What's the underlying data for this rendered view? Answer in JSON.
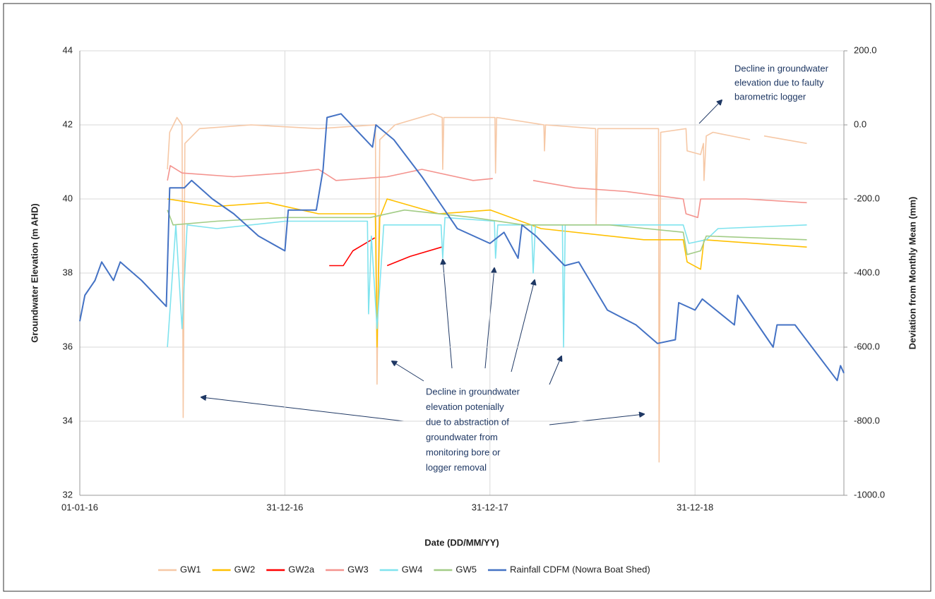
{
  "chart_data": {
    "type": "line",
    "xlabel": "Date (DD/MM/YY)",
    "ylabel": "Groundwater Elevation (m AHD)",
    "y2label": "Deviation from Monthly Mean (mm)",
    "xlim": [
      "2016-01-01",
      "2019-09-22"
    ],
    "xticks": [
      {
        "value": "2016-01-01",
        "label": "01-01-16"
      },
      {
        "value": "2016-12-31",
        "label": "31-12-16"
      },
      {
        "value": "2017-12-31",
        "label": "31-12-17"
      },
      {
        "value": "2018-12-31",
        "label": "31-12-18"
      }
    ],
    "ylim": [
      32,
      44
    ],
    "yticks": [
      32,
      34,
      36,
      38,
      40,
      42,
      44
    ],
    "y2lim": [
      -1000,
      200
    ],
    "y2ticks": [
      {
        "value": -1000,
        "label": "-1000.0"
      },
      {
        "value": -800,
        "label": "-800.0"
      },
      {
        "value": -600,
        "label": "-600.0"
      },
      {
        "value": -400,
        "label": "-400.0"
      },
      {
        "value": -200,
        "label": "-200.0"
      },
      {
        "value": 0,
        "label": "0.0"
      },
      {
        "value": 200,
        "label": "200.0"
      }
    ],
    "grid": true,
    "legend": "bottom",
    "annotations": [
      {
        "lines": [
          "Decline in groundwater",
          "elevation due to faulty",
          "barometric logger"
        ]
      },
      {
        "lines": [
          "Decline in groundwater",
          "elevation potenially",
          "due to abstraction of",
          "groundwater from",
          "monitoring bore or",
          "logger removal"
        ]
      }
    ],
    "series": [
      {
        "name": "GW1",
        "color": "#f6c8a6",
        "x": [
          "2016-06-05",
          "2016-06-09",
          "2016-06-22",
          "2016-07-01",
          "2016-07-03",
          "2016-07-06",
          "2016-08-01",
          "2016-11-01",
          "2017-03-01",
          "2017-06-10",
          "2017-06-13",
          "2017-06-18",
          "2017-07-15",
          "2017-09-20",
          "2017-10-07",
          "2017-10-08",
          "2017-10-10",
          "2018-01-09",
          "2018-01-10",
          "2018-01-12",
          "2018-04-06",
          "2018-04-07",
          "2018-04-09",
          "2018-07-07",
          "2018-07-08",
          "2018-07-11",
          "2018-10-27",
          "2018-10-28",
          "2018-10-31",
          "2018-12-15",
          "2018-12-17",
          "2019-01-10",
          "2019-01-15",
          "2019-01-16",
          "2019-01-20",
          "2019-02-01",
          "2019-04-08",
          "2019-04-20",
          "2019-05-03",
          "2019-07-18"
        ],
        "values": [
          40.8,
          41.8,
          42.2,
          42.0,
          34.1,
          41.5,
          41.9,
          42.0,
          41.9,
          42.0,
          35.0,
          41.6,
          42.0,
          42.3,
          42.2,
          40.8,
          42.2,
          42.2,
          40.7,
          42.2,
          42.0,
          41.3,
          42.0,
          41.9,
          39.3,
          41.9,
          41.9,
          32.9,
          41.8,
          41.9,
          41.3,
          41.2,
          41.5,
          40.5,
          41.7,
          41.8,
          41.6,
          null,
          41.7,
          41.5
        ]
      },
      {
        "name": "GW2",
        "color": "#ffc000",
        "x": [
          "2016-06-05",
          "2016-09-01",
          "2016-12-01",
          "2017-03-01",
          "2017-06-10",
          "2017-06-13",
          "2017-06-18",
          "2017-07-01",
          "2017-10-01",
          "2018-01-01",
          "2018-04-01",
          "2018-10-01",
          "2018-12-10",
          "2018-12-17",
          "2019-01-10",
          "2019-01-16",
          "2019-07-18"
        ],
        "values": [
          40.0,
          39.8,
          39.9,
          39.6,
          39.6,
          36.0,
          39.5,
          40.0,
          39.6,
          39.7,
          39.2,
          38.9,
          38.9,
          38.3,
          38.1,
          38.9,
          38.7
        ]
      },
      {
        "name": "GW2a",
        "color": "#ff0000",
        "x": [
          "2017-03-20",
          "2017-04-14",
          "2017-05-01",
          "2017-06-09",
          "2017-06-20",
          "2017-07-01",
          "2017-08-11",
          "2017-10-06"
        ],
        "values": [
          38.2,
          38.2,
          38.6,
          38.95,
          null,
          38.2,
          38.45,
          38.7
        ]
      },
      {
        "name": "GW3",
        "color": "#f4938e",
        "x": [
          "2016-06-05",
          "2016-06-10",
          "2016-07-01",
          "2016-10-01",
          "2017-01-01",
          "2017-03-01",
          "2017-04-01",
          "2017-07-01",
          "2017-09-01",
          "2017-12-01",
          "2018-01-05",
          "2018-02-10",
          "2018-03-18",
          "2018-06-01",
          "2018-09-01",
          "2018-12-10",
          "2018-12-15",
          "2019-01-05",
          "2019-01-10",
          "2019-04-01",
          "2019-07-18"
        ],
        "values": [
          40.5,
          40.9,
          40.7,
          40.6,
          40.7,
          40.8,
          40.5,
          40.6,
          40.8,
          40.5,
          40.55,
          null,
          40.5,
          40.3,
          40.2,
          40.0,
          39.6,
          39.5,
          40.0,
          40.0,
          39.9
        ]
      },
      {
        "name": "GW4",
        "color": "#7fe3ee",
        "x": [
          "2016-06-05",
          "2016-06-20",
          "2016-07-01",
          "2016-07-10",
          "2016-09-01",
          "2017-01-01",
          "2017-05-27",
          "2017-05-29",
          "2017-06-03",
          "2017-06-13",
          "2017-06-25",
          "2017-10-05",
          "2017-10-08",
          "2017-10-12",
          "2018-01-08",
          "2018-01-10",
          "2018-01-14",
          "2018-03-15",
          "2018-03-18",
          "2018-03-22",
          "2018-05-09",
          "2018-05-11",
          "2018-05-14",
          "2018-12-10",
          "2018-12-20",
          "2019-01-20",
          "2019-02-10",
          "2019-07-18"
        ],
        "values": [
          36.0,
          39.3,
          36.5,
          39.3,
          39.2,
          39.4,
          39.4,
          36.9,
          39.0,
          36.5,
          39.3,
          39.3,
          38.4,
          39.5,
          39.4,
          38.4,
          39.3,
          39.3,
          38.0,
          39.3,
          39.3,
          36.0,
          39.3,
          39.3,
          38.8,
          38.9,
          39.2,
          39.3
        ]
      },
      {
        "name": "GW5",
        "color": "#a2cc86",
        "x": [
          "2016-06-05",
          "2016-06-15",
          "2016-09-01",
          "2017-01-01",
          "2017-06-01",
          "2017-08-01",
          "2017-12-01",
          "2018-03-01",
          "2018-08-01",
          "2018-12-10",
          "2018-12-17",
          "2019-01-10",
          "2019-01-20",
          "2019-07-18"
        ],
        "values": [
          39.7,
          39.3,
          39.4,
          39.5,
          39.5,
          39.7,
          39.5,
          39.3,
          39.3,
          39.1,
          38.5,
          38.6,
          39.0,
          38.9
        ]
      },
      {
        "name": "Rainfall CDFM (Nowra Boat Shed)",
        "color": "#4472c4",
        "axis": "y2",
        "x": [
          "2016-01-01",
          "2016-01-10",
          "2016-01-28",
          "2016-02-09",
          "2016-03-01",
          "2016-03-13",
          "2016-04-20",
          "2016-06-03",
          "2016-06-09",
          "2016-07-05",
          "2016-07-18",
          "2016-08-24",
          "2016-10-01",
          "2016-11-14",
          "2016-12-31",
          "2017-01-06",
          "2017-02-25",
          "2017-03-09",
          "2017-03-16",
          "2017-04-10",
          "2017-06-05",
          "2017-06-11",
          "2017-07-13",
          "2017-09-01",
          "2017-11-03",
          "2017-12-31",
          "2018-01-25",
          "2018-02-19",
          "2018-02-26",
          "2018-03-23",
          "2018-05-13",
          "2018-06-07",
          "2018-07-28",
          "2018-09-17",
          "2018-10-25",
          "2018-11-26",
          "2018-12-02",
          "2018-12-31",
          "2019-01-13",
          "2019-03-11",
          "2019-03-17",
          "2019-05-19",
          "2019-05-26",
          "2019-06-27",
          "2019-09-10",
          "2019-09-16",
          "2019-09-22"
        ],
        "values": [
          -530,
          -460,
          -420,
          -370,
          -420,
          -370,
          -420,
          -490,
          -170,
          -170,
          -150,
          -200,
          -240,
          -300,
          -340,
          -230,
          -230,
          -120,
          20,
          30,
          -60,
          0,
          -40,
          -140,
          -280,
          -320,
          -290,
          -360,
          -270,
          -300,
          -380,
          -370,
          -500,
          -540,
          -590,
          -580,
          -480,
          -500,
          -470,
          -540,
          -460,
          -600,
          -540,
          -540,
          -690,
          -650,
          -670
        ]
      }
    ]
  }
}
